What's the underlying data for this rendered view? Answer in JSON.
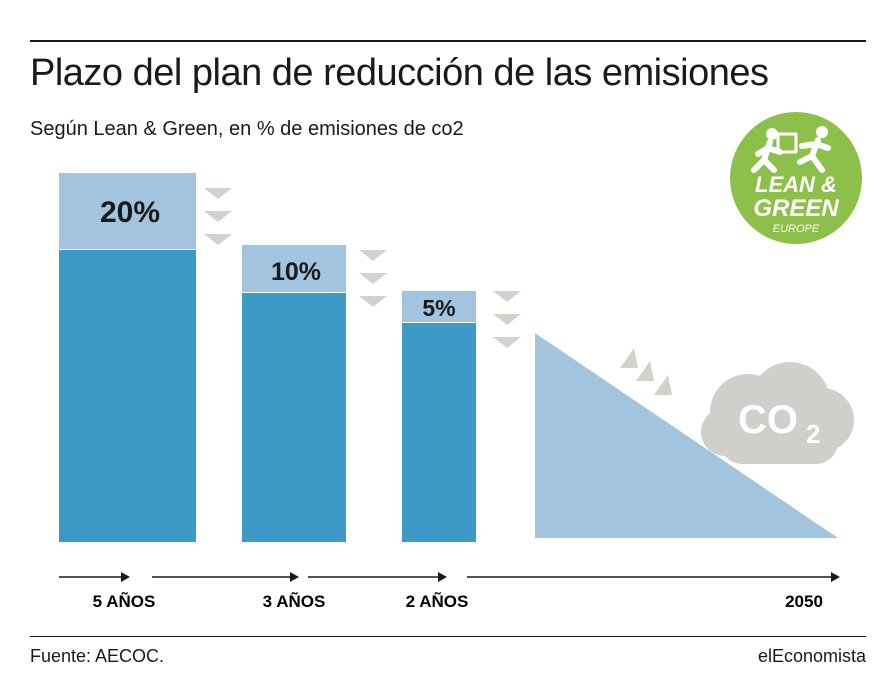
{
  "title": "Plazo del plan de reducción de las emisiones",
  "subtitle": "Según Lean & Green, en % de emisiones de co2",
  "source": "Fuente: AECOC.",
  "brand": "elEconomista",
  "logo": {
    "line1": "LEAN &",
    "line2": "GREEN",
    "line3": "EUROPE",
    "color": "#8cc04b"
  },
  "cloud": {
    "label": "CO",
    "subscript": "2",
    "color": "#d1cfcb"
  },
  "colors": {
    "bar": "#3d9ac6",
    "reduction": "#a2c4de",
    "arrows": "#d4d1cc",
    "text": "#1a1a1a"
  },
  "chart_data": {
    "type": "bar",
    "categories": [
      "5 AÑOS",
      "3 AÑOS",
      "2 AÑOS",
      "2050"
    ],
    "series": [
      {
        "values": [
          20,
          10,
          5
        ]
      }
    ],
    "labels": [
      "20%",
      "10%",
      "5%"
    ],
    "final_stage": "2050",
    "grid": false,
    "legend": "none"
  }
}
